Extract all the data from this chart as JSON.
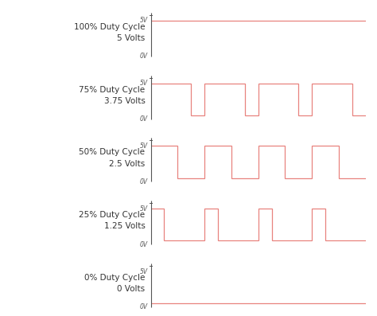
{
  "background_color": "#ffffff",
  "signal_color": "#e8837f",
  "axis_color": "#555555",
  "text_color": "#333333",
  "label_font_size": 7.5,
  "tick_font_size": 5.5,
  "panels": [
    {
      "label_line1": "100% Duty Cycle",
      "label_line2": "5 Volts",
      "duty_cycle": 1.0
    },
    {
      "label_line1": "75% Duty Cycle",
      "label_line2": "3.75 Volts",
      "duty_cycle": 0.75
    },
    {
      "label_line1": "50% Duty Cycle",
      "label_line2": "2.5 Volts",
      "duty_cycle": 0.5
    },
    {
      "label_line1": "25% Duty Cycle",
      "label_line2": "1.25 Volts",
      "duty_cycle": 0.25
    },
    {
      "label_line1": "0% Duty Cycle",
      "label_line2": "0 Volts",
      "duty_cycle": 0.0
    }
  ],
  "num_cycles": 4,
  "figsize": [
    4.74,
    3.97
  ],
  "dpi": 100
}
